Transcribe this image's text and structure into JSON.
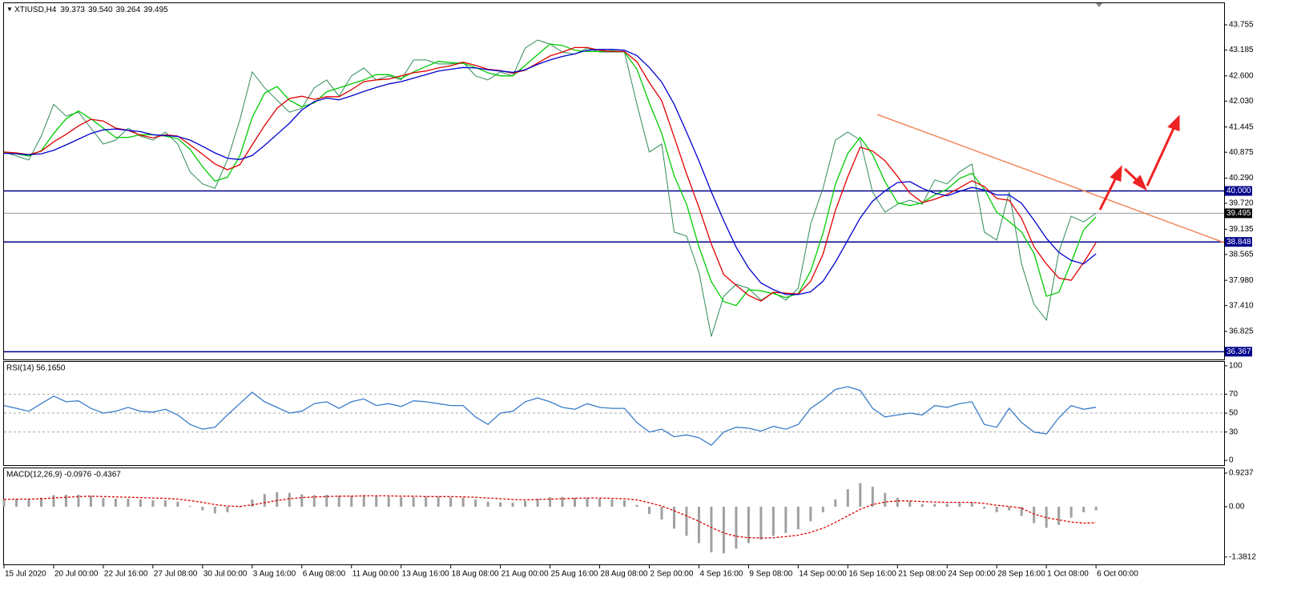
{
  "chart_data": [
    {
      "type": "line",
      "title": "XTIUSD,H4",
      "header_values": [
        "39.373",
        "39.540",
        "39.264",
        "39.495"
      ],
      "categories": [
        "15 Jul 2020",
        null,
        null,
        null,
        "20 Jul 00:00",
        null,
        null,
        null,
        "22 Jul 16:00",
        null,
        null,
        null,
        "27 Jul 08:00",
        null,
        null,
        null,
        "30 Jul 00:00",
        null,
        null,
        null,
        "3 Aug 16:00",
        null,
        null,
        null,
        "6 Aug 08:00",
        null,
        null,
        null,
        "11 Aug 00:00",
        null,
        null,
        null,
        "13 Aug 16:00",
        null,
        null,
        null,
        "18 Aug 08:00",
        null,
        null,
        null,
        "21 Aug 00:00",
        null,
        null,
        null,
        "25 Aug 16:00",
        null,
        null,
        null,
        "28 Aug 08:00",
        null,
        null,
        null,
        "2 Sep 00:00",
        null,
        null,
        null,
        "4 Sep 16:00",
        null,
        null,
        null,
        "9 Sep 08:00",
        null,
        null,
        null,
        "14 Sep 00:00",
        null,
        null,
        null,
        "16 Sep 16:00",
        null,
        null,
        null,
        "21 Sep 08:00",
        null,
        null,
        null,
        "24 Sep 00:00",
        null,
        null,
        null,
        "28 Sep 16:00",
        null,
        null,
        null,
        "1 Oct 08:00",
        null,
        null,
        null,
        "6 Oct 00:00"
      ],
      "series": [
        {
          "color": "#2e8b57",
          "values": [
            40.88,
            40.79,
            40.7,
            41.24,
            41.96,
            41.69,
            41.78,
            41.42,
            41.06,
            41.15,
            41.42,
            41.24,
            41.15,
            41.33,
            41.06,
            40.43,
            40.16,
            40.06,
            40.7,
            41.6,
            42.69,
            42.33,
            42.05,
            41.78,
            41.87,
            42.33,
            42.51,
            42.14,
            42.6,
            42.78,
            42.51,
            42.6,
            42.51,
            42.96,
            42.96,
            42.87,
            42.87,
            42.91,
            42.6,
            42.51,
            42.69,
            42.6,
            43.23,
            43.41,
            43.32,
            43.14,
            43.09,
            43.23,
            43.14,
            43.14,
            43.14,
            41.96,
            40.88,
            41.06,
            39.07,
            38.98,
            38.17,
            36.71,
            37.62,
            37.89,
            37.8,
            37.53,
            37.71,
            37.53,
            37.8,
            39.25,
            40.06,
            41.15,
            41.33,
            41.15,
            39.97,
            39.52,
            39.7,
            39.79,
            39.7,
            40.25,
            40.16,
            40.43,
            40.61,
            39.07,
            38.89,
            39.97,
            38.35,
            37.44,
            37.08,
            38.62,
            39.43,
            39.3,
            39.495
          ]
        },
        {
          "color": "#00cc00",
          "values": [
            40.88,
            40.84,
            40.79,
            40.91,
            41.3,
            41.63,
            41.81,
            41.63,
            41.42,
            41.21,
            41.21,
            41.27,
            41.27,
            41.24,
            41.18,
            40.94,
            40.55,
            40.22,
            40.31,
            40.79,
            41.66,
            42.21,
            42.36,
            42.05,
            41.9,
            41.99,
            42.24,
            42.33,
            42.42,
            42.51,
            42.63,
            42.63,
            42.54,
            42.69,
            42.81,
            42.93,
            42.9,
            42.88,
            42.79,
            42.67,
            42.6,
            42.6,
            42.84,
            43.08,
            43.32,
            43.29,
            43.18,
            43.15,
            43.15,
            43.17,
            43.14,
            42.75,
            41.99,
            41.3,
            40.34,
            39.7,
            38.74,
            37.95,
            37.5,
            37.41,
            37.77,
            37.74,
            37.68,
            37.59,
            37.68,
            38.19,
            39.04,
            40.15,
            40.85,
            41.21,
            40.82,
            40.21,
            39.73,
            39.67,
            39.73,
            39.91,
            40.04,
            40.28,
            40.4,
            40.04,
            39.52,
            39.31,
            39.07,
            38.59,
            37.62,
            37.71,
            38.38,
            39.12,
            39.41
          ]
        },
        {
          "color": "#e00000",
          "values": [
            40.88,
            40.86,
            40.82,
            40.9,
            41.11,
            41.28,
            41.47,
            41.62,
            41.58,
            41.42,
            41.37,
            41.26,
            41.2,
            41.27,
            41.24,
            41.04,
            40.83,
            40.61,
            40.48,
            40.59,
            41.04,
            41.48,
            41.87,
            42.09,
            42.14,
            42.07,
            42.13,
            42.13,
            42.29,
            42.47,
            42.51,
            42.53,
            42.6,
            42.67,
            42.71,
            42.78,
            42.83,
            42.91,
            42.84,
            42.75,
            42.72,
            42.66,
            42.73,
            42.89,
            43.05,
            43.14,
            43.24,
            43.24,
            43.18,
            43.15,
            43.15,
            42.92,
            42.45,
            42.04,
            41.22,
            40.39,
            39.63,
            38.8,
            38.11,
            37.87,
            37.64,
            37.51,
            37.71,
            37.69,
            37.67,
            37.96,
            38.57,
            39.56,
            40.32,
            40.99,
            40.9,
            40.68,
            40.33,
            39.95,
            39.74,
            39.81,
            39.92,
            40.07,
            40.23,
            40.1,
            39.83,
            39.79,
            39.38,
            38.74,
            38.35,
            38.03,
            37.98,
            38.38,
            38.83
          ]
        },
        {
          "color": "#0000cc",
          "values": [
            40.85,
            40.84,
            40.82,
            40.84,
            40.92,
            41.04,
            41.17,
            41.3,
            41.38,
            41.4,
            41.37,
            41.34,
            41.27,
            41.25,
            41.23,
            41.15,
            41.01,
            40.86,
            40.74,
            40.71,
            40.8,
            41.03,
            41.28,
            41.53,
            41.83,
            42.02,
            42.1,
            42.06,
            42.15,
            42.25,
            42.34,
            42.42,
            42.47,
            42.55,
            42.63,
            42.71,
            42.75,
            42.79,
            42.78,
            42.74,
            42.71,
            42.68,
            42.74,
            42.86,
            42.96,
            43.04,
            43.1,
            43.18,
            43.2,
            43.2,
            43.18,
            43.06,
            42.79,
            42.46,
            41.96,
            41.33,
            40.68,
            39.98,
            39.33,
            38.73,
            38.26,
            37.92,
            37.77,
            37.66,
            37.66,
            37.72,
            37.96,
            38.39,
            38.89,
            39.39,
            39.77,
            40.0,
            40.19,
            40.21,
            40.06,
            39.95,
            39.89,
            39.99,
            40.08,
            40.02,
            39.91,
            39.91,
            39.72,
            39.34,
            38.93,
            38.61,
            38.43,
            38.35,
            38.58
          ]
        }
      ],
      "ylim": [
        36.21,
        44.225
      ],
      "yticks": [
        43.755,
        43.185,
        {
          "value": 42.6,
          "label": "42.600"
        },
        {
          "value": 42.03,
          "label": "42.030"
        },
        41.445,
        40.875,
        {
          "value": 40.29,
          "label": "40.290"
        },
        {
          "value": 39.72,
          "label": "39.720"
        },
        39.135,
        38.565,
        {
          "value": 37.98,
          "label": "37.980"
        },
        {
          "value": 37.41,
          "label": "37.410"
        },
        36.825
      ],
      "levels": [
        {
          "value": 40,
          "label": "40.000",
          "color": "#00008b"
        },
        {
          "value": 38.848,
          "label": "38.848",
          "color": "#00008b"
        },
        {
          "value": 36.367,
          "label": "36.367",
          "color": "#00008b"
        },
        {
          "value": 39.495,
          "label": "39.495",
          "color": "#999999",
          "label_color": "#000000"
        }
      ]
    },
    {
      "type": "line",
      "title": "RSI(14) 56.1650",
      "series": [
        {
          "color": "#3a7dc9",
          "values": [
            58,
            55,
            52,
            60,
            68,
            62,
            63,
            55,
            50,
            52,
            56,
            52,
            51,
            54,
            48,
            38,
            33,
            35,
            48,
            60,
            72,
            62,
            56,
            50,
            52,
            60,
            62,
            55,
            62,
            65,
            58,
            60,
            57,
            63,
            62,
            60,
            58,
            58,
            46,
            38,
            50,
            52,
            62,
            66,
            62,
            56,
            54,
            60,
            56,
            55,
            55,
            40,
            30,
            33,
            25,
            27,
            24,
            16,
            30,
            35,
            34,
            31,
            36,
            33,
            38,
            55,
            64,
            75,
            78,
            74,
            55,
            46,
            48,
            50,
            48,
            58,
            56,
            60,
            62,
            38,
            35,
            55,
            40,
            30,
            28,
            45,
            58,
            54,
            56.165
          ]
        }
      ],
      "ylim": [
        -5,
        104.2
      ],
      "yticks": [
        100,
        70,
        50,
        30,
        0
      ],
      "levels": [
        {
          "value": 70
        },
        {
          "value": 50
        },
        {
          "value": 30
        }
      ]
    },
    {
      "type": "bar",
      "title": "MACD(12,26,9) -0.0976 -0.4367",
      "series": [
        {
          "color": "#a0a0a0",
          "values": [
            0.2,
            0.22,
            0.2,
            0.25,
            0.32,
            0.33,
            0.33,
            0.3,
            0.24,
            0.22,
            0.22,
            0.2,
            0.18,
            0.18,
            0.14,
            0.02,
            -0.1,
            -0.18,
            -0.15,
            -0.02,
            0.2,
            0.35,
            0.4,
            0.38,
            0.34,
            0.32,
            0.33,
            0.3,
            0.3,
            0.32,
            0.3,
            0.28,
            0.26,
            0.27,
            0.28,
            0.28,
            0.26,
            0.25,
            0.2,
            0.14,
            0.12,
            0.11,
            0.16,
            0.22,
            0.26,
            0.27,
            0.25,
            0.25,
            0.22,
            0.2,
            0.18,
            0.05,
            -0.2,
            -0.35,
            -0.6,
            -0.8,
            -1.0,
            -1.25,
            -1.28,
            -1.15,
            -1.0,
            -0.9,
            -0.8,
            -0.72,
            -0.62,
            -0.4,
            -0.15,
            0.2,
            0.48,
            0.65,
            0.55,
            0.38,
            0.25,
            0.15,
            0.07,
            0.08,
            0.08,
            0.1,
            0.12,
            -0.05,
            -0.15,
            -0.1,
            -0.25,
            -0.45,
            -0.58,
            -0.5,
            -0.3,
            -0.15,
            -0.0976
          ]
        },
        {
          "type": "line",
          "color": "#e00000",
          "values": [
            0.2,
            0.21,
            0.21,
            0.22,
            0.24,
            0.26,
            0.28,
            0.29,
            0.28,
            0.27,
            0.26,
            0.25,
            0.24,
            0.23,
            0.21,
            0.17,
            0.12,
            0.06,
            0.02,
            0.01,
            0.05,
            0.11,
            0.17,
            0.22,
            0.25,
            0.27,
            0.28,
            0.29,
            0.29,
            0.3,
            0.3,
            0.3,
            0.29,
            0.29,
            0.28,
            0.28,
            0.28,
            0.27,
            0.26,
            0.24,
            0.22,
            0.2,
            0.19,
            0.2,
            0.21,
            0.22,
            0.23,
            0.24,
            0.24,
            0.23,
            0.22,
            0.19,
            0.11,
            0.02,
            -0.11,
            -0.25,
            -0.4,
            -0.57,
            -0.72,
            -0.81,
            -0.85,
            -0.86,
            -0.85,
            -0.82,
            -0.78,
            -0.7,
            -0.59,
            -0.43,
            -0.25,
            -0.07,
            0.06,
            0.13,
            0.16,
            0.16,
            0.14,
            0.13,
            0.12,
            0.12,
            0.12,
            0.09,
            0.04,
            0.01,
            -0.04,
            -0.2,
            -0.3,
            -0.36,
            -0.42,
            -0.45,
            -0.4367
          ]
        }
      ],
      "ylim": [
        -1.582,
        1.055
      ],
      "yticks": [
        0.9237,
        {
          "value": 0,
          "label": "0.00"
        },
        -1.3812
      ]
    }
  ]
}
